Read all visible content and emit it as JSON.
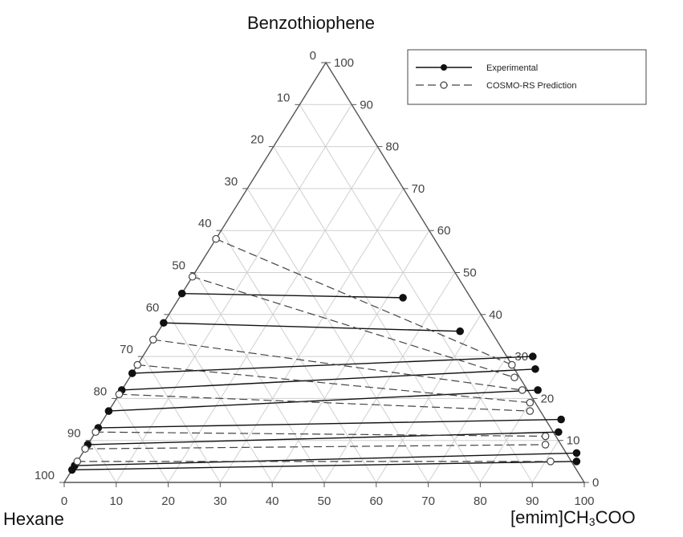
{
  "chart_data": {
    "type": "ternary",
    "vertex_labels": {
      "top": "Benzothiophene",
      "left": "Hexane",
      "right_main": "[emim]CH",
      "right_sub": "3",
      "right_tail": "COO"
    },
    "ticks": [
      "0",
      "10",
      "20",
      "30",
      "40",
      "50",
      "60",
      "70",
      "80",
      "90",
      "100"
    ],
    "grid": true,
    "legend": {
      "placement": "top-right",
      "entries": [
        {
          "label": "Experimental",
          "style": "solid",
          "marker": "filled-circle"
        },
        {
          "label": "COSMO-RS Prediction",
          "style": "dashed",
          "marker": "open-circle"
        }
      ]
    },
    "series": [
      {
        "name": "Experimental",
        "tie_lines": [
          {
            "hexane_phase": {
              "ionic_liquid": 0,
              "benzothiophene": 45
            },
            "il_phase": {
              "ionic_liquid": 43,
              "benzothiophene": 44
            }
          },
          {
            "hexane_phase": {
              "ionic_liquid": 0,
              "benzothiophene": 38
            },
            "il_phase": {
              "ionic_liquid": 58,
              "benzothiophene": 36
            }
          },
          {
            "hexane_phase": {
              "ionic_liquid": 0,
              "benzothiophene": 26
            },
            "il_phase": {
              "ionic_liquid": 75,
              "benzothiophene": 30
            }
          },
          {
            "hexane_phase": {
              "ionic_liquid": 0,
              "benzothiophene": 22
            },
            "il_phase": {
              "ionic_liquid": 77,
              "benzothiophene": 27
            }
          },
          {
            "hexane_phase": {
              "ionic_liquid": 0,
              "benzothiophene": 17
            },
            "il_phase": {
              "ionic_liquid": 80,
              "benzothiophene": 22
            }
          },
          {
            "hexane_phase": {
              "ionic_liquid": 0,
              "benzothiophene": 13
            },
            "il_phase": {
              "ionic_liquid": 88,
              "benzothiophene": 15
            }
          },
          {
            "hexane_phase": {
              "ionic_liquid": 0,
              "benzothiophene": 9
            },
            "il_phase": {
              "ionic_liquid": 89,
              "benzothiophene": 12
            }
          },
          {
            "hexane_phase": {
              "ionic_liquid": 0,
              "benzothiophene": 4
            },
            "il_phase": {
              "ionic_liquid": 95,
              "benzothiophene": 7
            }
          },
          {
            "hexane_phase": {
              "ionic_liquid": 0,
              "benzothiophene": 3
            },
            "il_phase": {
              "ionic_liquid": 96,
              "benzothiophene": 5
            }
          }
        ]
      },
      {
        "name": "COSMO-RS Prediction",
        "tie_lines": [
          {
            "hexane_phase": {
              "ionic_liquid": 0,
              "benzothiophene": 58
            },
            "il_phase": {
              "ionic_liquid": 72,
              "benzothiophene": 28
            }
          },
          {
            "hexane_phase": {
              "ionic_liquid": 0,
              "benzothiophene": 49
            },
            "il_phase": {
              "ionic_liquid": 74,
              "benzothiophene": 25
            }
          },
          {
            "hexane_phase": {
              "ionic_liquid": 0,
              "benzothiophene": 34
            },
            "il_phase": {
              "ionic_liquid": 77,
              "benzothiophene": 22
            }
          },
          {
            "hexane_phase": {
              "ionic_liquid": 0,
              "benzothiophene": 28
            },
            "il_phase": {
              "ionic_liquid": 80,
              "benzothiophene": 19
            }
          },
          {
            "hexane_phase": {
              "ionic_liquid": 0,
              "benzothiophene": 21
            },
            "il_phase": {
              "ionic_liquid": 81,
              "benzothiophene": 17
            }
          },
          {
            "hexane_phase": {
              "ionic_liquid": 0,
              "benzothiophene": 12
            },
            "il_phase": {
              "ionic_liquid": 87,
              "benzothiophene": 11
            }
          },
          {
            "hexane_phase": {
              "ionic_liquid": 0,
              "benzothiophene": 8
            },
            "il_phase": {
              "ionic_liquid": 88,
              "benzothiophene": 9
            }
          },
          {
            "hexane_phase": {
              "ionic_liquid": 0,
              "benzothiophene": 5
            },
            "il_phase": {
              "ionic_liquid": 91,
              "benzothiophene": 5
            }
          }
        ]
      }
    ]
  }
}
